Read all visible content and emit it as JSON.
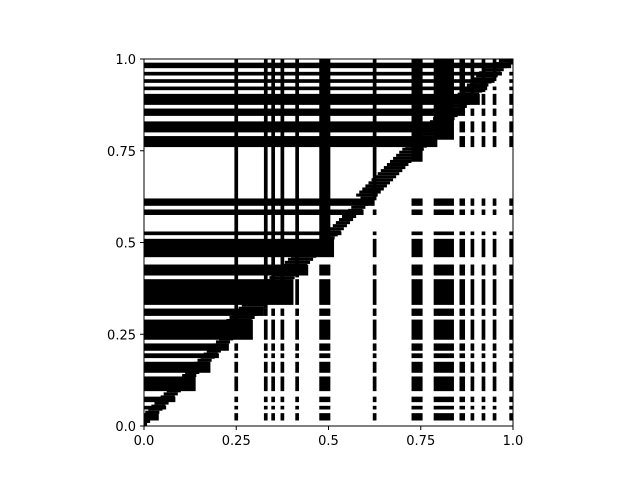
{
  "chart_data": {
    "type": "heatmap",
    "title": "",
    "xlabel": "",
    "ylabel": "",
    "xlim": [
      0.0,
      1.0
    ],
    "ylim": [
      0.0,
      1.0
    ],
    "xticks": [
      "0.0",
      "0.25",
      "0.5",
      "0.75",
      "1.0"
    ],
    "yticks": [
      "0.0",
      "0.25",
      "0.5",
      "0.75",
      "1.0"
    ],
    "xtick_values": [
      0.0,
      0.25,
      0.5,
      0.75,
      1.0
    ],
    "ytick_values": [
      0.0,
      0.25,
      0.5,
      0.75,
      1.0
    ],
    "colors": {
      "on": "#000000",
      "off": "#ffffff"
    },
    "grid": false,
    "description_hint": "binary matrix; black lower-left triangle rows and upper-left columns",
    "regions": [
      {
        "kind": "triangle_lower",
        "note": "black below diagonal in many rows"
      }
    ],
    "row_bands": [
      [
        0.975,
        0.99
      ],
      [
        0.955,
        0.965
      ],
      [
        0.935,
        0.945
      ],
      [
        0.915,
        0.925
      ],
      [
        0.875,
        0.905
      ],
      [
        0.845,
        0.865
      ],
      [
        0.8,
        0.83
      ],
      [
        0.76,
        0.79
      ],
      [
        0.6,
        0.62
      ],
      [
        0.575,
        0.59
      ],
      [
        0.52,
        0.53
      ],
      [
        0.46,
        0.51
      ],
      [
        0.41,
        0.44
      ],
      [
        0.33,
        0.4
      ],
      [
        0.3,
        0.32
      ],
      [
        0.235,
        0.29
      ],
      [
        0.205,
        0.225
      ],
      [
        0.185,
        0.198
      ],
      [
        0.145,
        0.175
      ],
      [
        0.095,
        0.135
      ],
      [
        0.065,
        0.08
      ],
      [
        0.045,
        0.055
      ],
      [
        0.015,
        0.035
      ]
    ],
    "col_bands": [
      [
        0.245,
        0.255
      ],
      [
        0.325,
        0.335
      ],
      [
        0.345,
        0.355
      ],
      [
        0.37,
        0.38
      ],
      [
        0.41,
        0.42
      ],
      [
        0.475,
        0.505
      ],
      [
        0.62,
        0.63
      ],
      [
        0.725,
        0.755
      ],
      [
        0.785,
        0.84
      ],
      [
        0.855,
        0.87
      ],
      [
        0.885,
        0.895
      ],
      [
        0.915,
        0.925
      ],
      [
        0.945,
        0.955
      ],
      [
        0.99,
        1.0
      ]
    ]
  }
}
